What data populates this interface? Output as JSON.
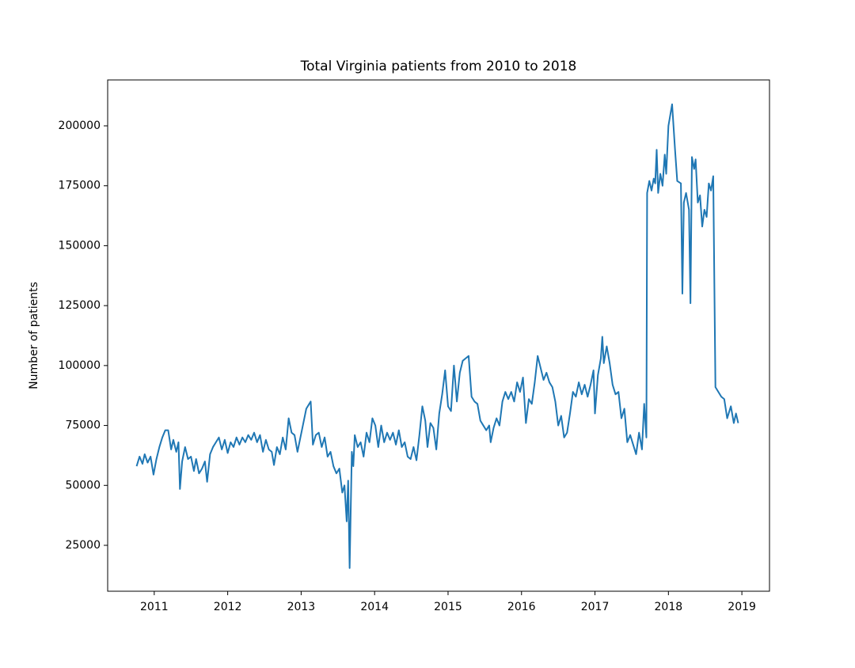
{
  "chart_data": {
    "type": "line",
    "title": "Total Virginia patients from 2010 to 2018",
    "y_label": "Number of patients",
    "color": "#1f77b4",
    "x": [
      2010.76,
      2010.8,
      2010.84,
      2010.87,
      2010.91,
      2010.95,
      2010.99,
      2011.03,
      2011.07,
      2011.11,
      2011.15,
      2011.19,
      2011.23,
      2011.26,
      2011.3,
      2011.33,
      2011.35,
      2011.38,
      2011.42,
      2011.46,
      2011.5,
      2011.54,
      2011.57,
      2011.61,
      2011.65,
      2011.69,
      2011.72,
      2011.76,
      2011.8,
      2011.84,
      2011.88,
      2011.92,
      2011.96,
      2012.0,
      2012.04,
      2012.08,
      2012.12,
      2012.16,
      2012.2,
      2012.24,
      2012.28,
      2012.32,
      2012.36,
      2012.4,
      2012.44,
      2012.48,
      2012.52,
      2012.56,
      2012.6,
      2012.63,
      2012.67,
      2012.71,
      2012.75,
      2012.79,
      2012.83,
      2012.87,
      2012.91,
      2012.95,
      2012.99,
      2013.03,
      2013.07,
      2013.11,
      2013.13,
      2013.16,
      2013.2,
      2013.24,
      2013.28,
      2013.32,
      2013.36,
      2013.4,
      2013.44,
      2013.48,
      2013.52,
      2013.56,
      2013.59,
      2013.62,
      2013.64,
      2013.66,
      2013.69,
      2013.71,
      2013.73,
      2013.77,
      2013.81,
      2013.85,
      2013.89,
      2013.93,
      2013.97,
      2014.01,
      2014.05,
      2014.09,
      2014.13,
      2014.17,
      2014.21,
      2014.25,
      2014.29,
      2014.33,
      2014.37,
      2014.41,
      2014.45,
      2014.49,
      2014.53,
      2014.57,
      2014.61,
      2014.65,
      2014.69,
      2014.72,
      2014.76,
      2014.8,
      2014.84,
      2014.88,
      2014.92,
      2014.96,
      2015.0,
      2015.04,
      2015.08,
      2015.12,
      2015.16,
      2015.2,
      2015.24,
      2015.28,
      2015.32,
      2015.36,
      2015.4,
      2015.44,
      2015.48,
      2015.52,
      2015.56,
      2015.58,
      2015.62,
      2015.66,
      2015.7,
      2015.74,
      2015.78,
      2015.82,
      2015.86,
      2015.9,
      2015.94,
      2015.98,
      2016.02,
      2016.06,
      2016.1,
      2016.14,
      2016.18,
      2016.22,
      2016.26,
      2016.3,
      2016.34,
      2016.38,
      2016.42,
      2016.46,
      2016.5,
      2016.54,
      2016.58,
      2016.62,
      2016.66,
      2016.7,
      2016.74,
      2016.78,
      2016.82,
      2016.86,
      2016.9,
      2016.94,
      2016.98,
      2017.0,
      2017.04,
      2017.08,
      2017.1,
      2017.12,
      2017.16,
      2017.2,
      2017.24,
      2017.28,
      2017.32,
      2017.36,
      2017.4,
      2017.44,
      2017.48,
      2017.52,
      2017.56,
      2017.6,
      2017.64,
      2017.67,
      2017.7,
      2017.71,
      2017.74,
      2017.77,
      2017.8,
      2017.82,
      2017.84,
      2017.86,
      2017.89,
      2017.92,
      2017.95,
      2017.97,
      2018.0,
      2018.05,
      2018.09,
      2018.12,
      2018.17,
      2018.19,
      2018.21,
      2018.24,
      2018.28,
      2018.3,
      2018.32,
      2018.35,
      2018.37,
      2018.4,
      2018.43,
      2018.46,
      2018.49,
      2018.52,
      2018.55,
      2018.58,
      2018.61,
      2018.64,
      2018.72,
      2018.76,
      2018.8,
      2018.85,
      2018.89,
      2018.92,
      2018.95
    ],
    "values": [
      58000,
      62000,
      59000,
      63000,
      59500,
      62000,
      54500,
      61000,
      66000,
      70000,
      73000,
      73000,
      65000,
      69000,
      64000,
      68000,
      48500,
      60000,
      66000,
      61000,
      62000,
      56000,
      61000,
      55000,
      57000,
      60000,
      51500,
      63000,
      66000,
      68000,
      70000,
      65000,
      69000,
      63500,
      68000,
      66000,
      70000,
      67000,
      70000,
      68000,
      71000,
      69000,
      72000,
      68000,
      71000,
      64000,
      69000,
      65000,
      64000,
      58500,
      66000,
      63000,
      70000,
      65000,
      78000,
      72000,
      71000,
      64000,
      70000,
      76000,
      82000,
      84000,
      85000,
      67000,
      71000,
      72000,
      66000,
      70000,
      62000,
      64000,
      58000,
      55000,
      57000,
      47000,
      50000,
      35000,
      52000,
      15500,
      64000,
      58000,
      71000,
      66000,
      68000,
      62000,
      72000,
      68000,
      78000,
      75000,
      66000,
      75000,
      68000,
      72000,
      69000,
      72000,
      67000,
      73000,
      66000,
      68000,
      62000,
      61000,
      66000,
      60500,
      71000,
      83000,
      77000,
      66000,
      76000,
      74000,
      65000,
      80000,
      88000,
      98000,
      83000,
      81000,
      100000,
      85000,
      97000,
      102000,
      103000,
      104000,
      87000,
      85000,
      84000,
      77000,
      75000,
      73000,
      75000,
      68000,
      74000,
      78000,
      75000,
      85000,
      89000,
      86000,
      89000,
      85000,
      93000,
      89000,
      95000,
      76000,
      86000,
      84000,
      93000,
      104000,
      99000,
      94000,
      97000,
      93000,
      91000,
      85000,
      75000,
      79000,
      70000,
      72000,
      80000,
      89000,
      87000,
      93000,
      88000,
      92000,
      87000,
      92000,
      98000,
      80000,
      96000,
      103000,
      112000,
      101000,
      108000,
      101000,
      92000,
      88000,
      89000,
      78000,
      82000,
      68000,
      71000,
      67000,
      63000,
      72000,
      65000,
      84000,
      70000,
      172000,
      177000,
      173000,
      178000,
      176000,
      190000,
      172000,
      180000,
      175000,
      188000,
      180000,
      200000,
      209000,
      190000,
      177000,
      176000,
      130000,
      168000,
      172000,
      165000,
      126000,
      187000,
      182000,
      186000,
      168000,
      171000,
      158000,
      165000,
      162000,
      176000,
      173000,
      179000,
      91000,
      87000,
      86000,
      78000,
      83000,
      76000,
      80000,
      76000
    ],
    "xlim": [
      2010.366,
      2019.376
    ],
    "xticks": [
      2011,
      2012,
      2013,
      2014,
      2015,
      2016,
      2017,
      2018,
      2019
    ],
    "ylim": [
      5849,
      219151
    ],
    "yticks": [
      25000,
      50000,
      75000,
      100000,
      125000,
      150000,
      175000,
      200000
    ]
  }
}
